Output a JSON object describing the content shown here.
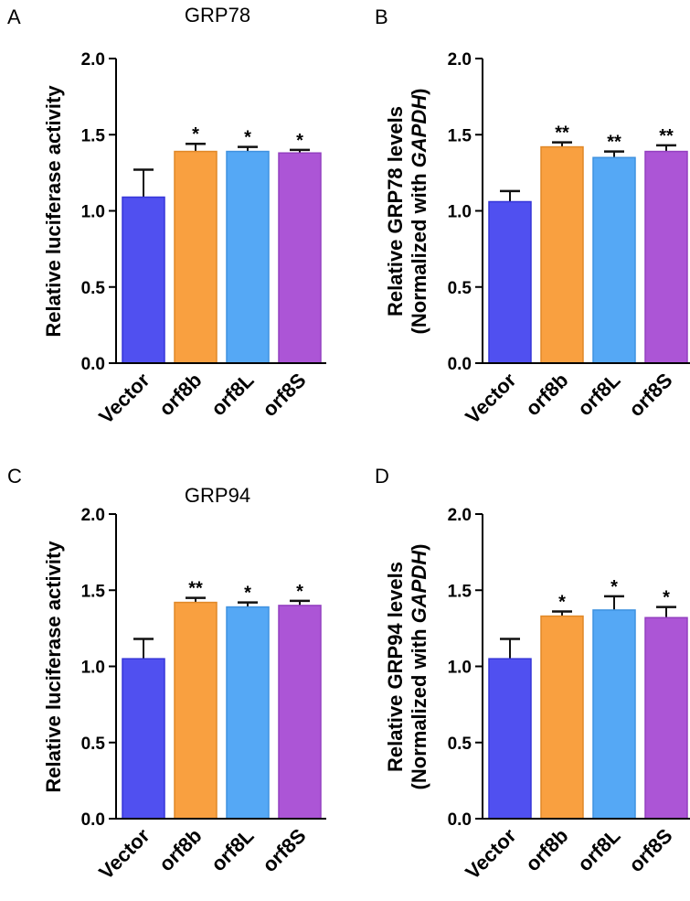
{
  "colors": {
    "Vector": "#5050f0",
    "orf8b": "#f9a040",
    "orf8L": "#55a8f5",
    "orf8S": "#ac55d6"
  },
  "chart_data": [
    {
      "panel": "A",
      "type": "bar",
      "title": "GRP78",
      "ylabel": [
        "Relative luciferase activity"
      ],
      "xlabel": "",
      "categories": [
        "Vector",
        "orf8b",
        "orf8L",
        "orf8S"
      ],
      "values": [
        1.09,
        1.39,
        1.39,
        1.38
      ],
      "errors": [
        0.18,
        0.05,
        0.03,
        0.02
      ],
      "significance": [
        "",
        "*",
        "*",
        "*"
      ],
      "ylim": [
        0,
        2.0
      ],
      "yticks": [
        "0.0",
        "0.5",
        "1.0",
        "1.5",
        "2.0"
      ]
    },
    {
      "panel": "B",
      "type": "bar",
      "title": "",
      "ylabel": [
        "Relative GRP78 levels",
        "(Normalized with ",
        "GAPDH",
        ")"
      ],
      "xlabel": "",
      "categories": [
        "Vector",
        "orf8b",
        "orf8L",
        "orf8S"
      ],
      "values": [
        1.06,
        1.42,
        1.35,
        1.39
      ],
      "errors": [
        0.07,
        0.03,
        0.04,
        0.04
      ],
      "significance": [
        "",
        "**",
        "**",
        "**"
      ],
      "ylim": [
        0,
        2.0
      ],
      "yticks": [
        "0.0",
        "0.5",
        "1.0",
        "1.5",
        "2.0"
      ]
    },
    {
      "panel": "C",
      "type": "bar",
      "title": "GRP94",
      "ylabel": [
        "Relative luciferase activity"
      ],
      "xlabel": "",
      "categories": [
        "Vector",
        "orf8b",
        "orf8L",
        "orf8S"
      ],
      "values": [
        1.05,
        1.42,
        1.39,
        1.4
      ],
      "errors": [
        0.13,
        0.03,
        0.03,
        0.03
      ],
      "significance": [
        "",
        "**",
        "*",
        "*"
      ],
      "ylim": [
        0,
        2.0
      ],
      "yticks": [
        "0.0",
        "0.5",
        "1.0",
        "1.5",
        "2.0"
      ]
    },
    {
      "panel": "D",
      "type": "bar",
      "title": "",
      "ylabel": [
        "Relative GRP94 levels",
        "(Normalized with ",
        "GAPDH",
        ")"
      ],
      "xlabel": "",
      "categories": [
        "Vector",
        "orf8b",
        "orf8L",
        "orf8S"
      ],
      "values": [
        1.05,
        1.33,
        1.37,
        1.32
      ],
      "errors": [
        0.13,
        0.03,
        0.09,
        0.07
      ],
      "significance": [
        "",
        "*",
        "*",
        "*"
      ],
      "ylim": [
        0,
        2.0
      ],
      "yticks": [
        "0.0",
        "0.5",
        "1.0",
        "1.5",
        "2.0"
      ]
    }
  ]
}
